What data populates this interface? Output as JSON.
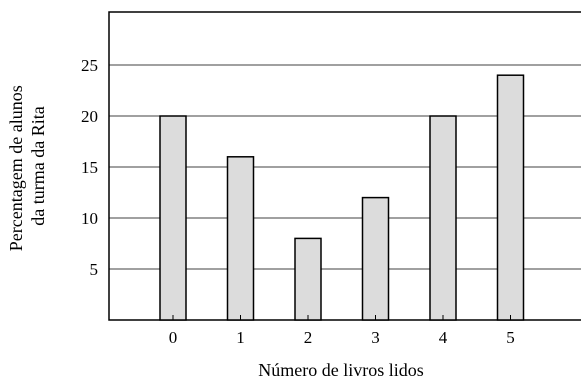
{
  "chart_data": {
    "type": "bar",
    "categories": [
      "0",
      "1",
      "2",
      "3",
      "4",
      "5"
    ],
    "values": [
      20,
      16,
      8,
      12,
      20,
      24
    ],
    "xlabel": "Número de livros lidos",
    "ylabel": [
      "Percentagem de alunos",
      "da turma da Rita"
    ],
    "yticks": [
      5,
      10,
      15,
      20,
      25
    ],
    "ylim": [
      0,
      30
    ],
    "grid": true,
    "bar_color": "#dcdcdc",
    "edge_color": "#000000"
  }
}
